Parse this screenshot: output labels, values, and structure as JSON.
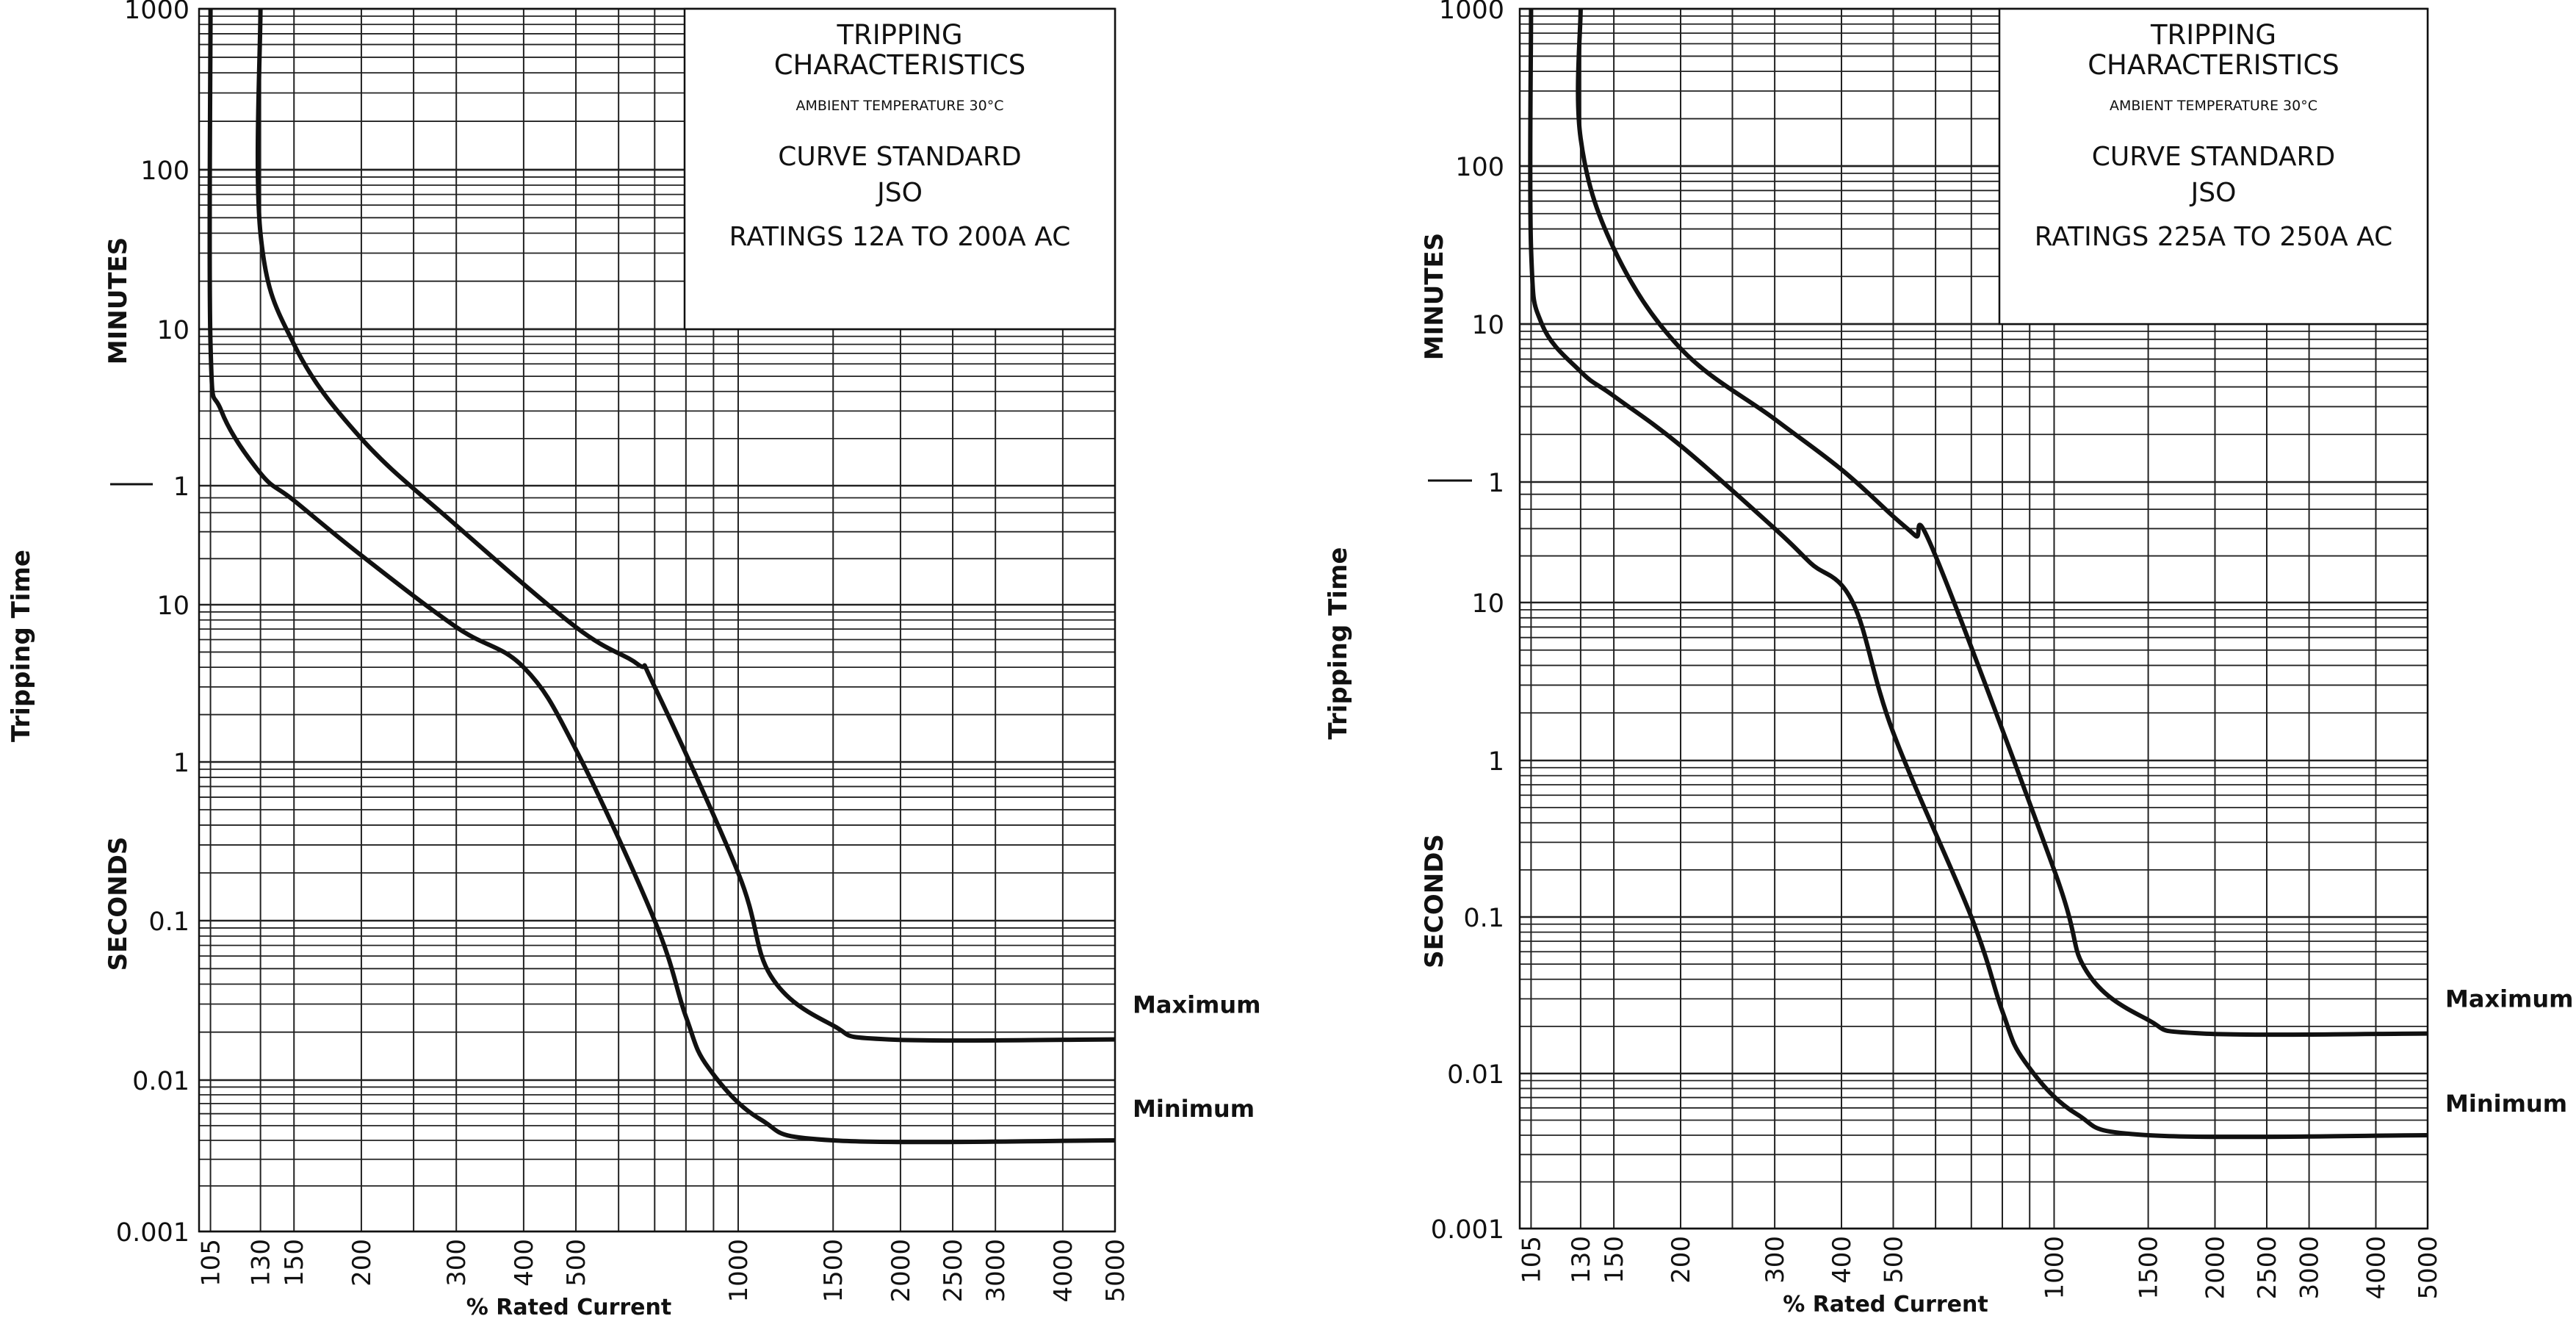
{
  "chart_data": [
    {
      "type": "line",
      "title": "TRIPPING CHARACTERISTICS",
      "subtitle": "AMBIENT TEMPERATURE 30°C",
      "standard_label": "CURVE STANDARD",
      "standard": "JSO",
      "ratings": "RATINGS 12A TO 200A AC",
      "xlabel": "% Rated Current",
      "ylabel": "Tripping Time",
      "unit_minutes": "MINUTES",
      "unit_seconds": "SECONDS",
      "x_scale": "log",
      "xlim": [
        100,
        5000
      ],
      "x_ticks": [
        "105",
        "130",
        "150",
        "200",
        "300",
        "400",
        "500",
        "1000",
        "1500",
        "2000",
        "2500",
        "3000",
        "4000",
        "5000"
      ],
      "y_minutes_ticks": [
        "1000",
        "100",
        "10",
        "1"
      ],
      "y_seconds_ticks": [
        "10",
        "1",
        "0.1",
        "0.01",
        "0.001"
      ],
      "series": [
        {
          "name": "Maximum",
          "points": [
            [
              130,
              1000
            ],
            [
              130,
              40
            ],
            [
              150,
              8
            ],
            [
              200,
              2
            ],
            [
              300,
              0.55
            ],
            [
              500,
              0.12
            ],
            [
              650,
              0.07
            ],
            [
              700,
              3
            ],
            [
              1000,
              0.2
            ],
            [
              1150,
              0.045
            ],
            [
              1500,
              0.022
            ],
            [
              1900,
              0.018
            ],
            [
              5000,
              0.018
            ]
          ]
        },
        {
          "name": "Minimum",
          "points": [
            [
              105,
              1000
            ],
            [
              105,
              8
            ],
            [
              110,
              3
            ],
            [
              130,
              1.2
            ],
            [
              150,
              0.8
            ],
            [
              200,
              0.35
            ],
            [
              300,
              0.12
            ],
            [
              400,
              4
            ],
            [
              500,
              1.2
            ],
            [
              700,
              0.1
            ],
            [
              800,
              0.025
            ],
            [
              880,
              0.012
            ],
            [
              1100,
              0.0055
            ],
            [
              1500,
              0.004
            ],
            [
              5000,
              0.004
            ]
          ]
        }
      ]
    },
    {
      "type": "line",
      "title": "TRIPPING CHARACTERISTICS",
      "subtitle": "AMBIENT TEMPERATURE 30°C",
      "standard_label": "CURVE STANDARD",
      "standard": "JSO",
      "ratings": "RATINGS 225A TO 250A AC",
      "xlabel": "% Rated Current",
      "ylabel": "Tripping Time",
      "unit_minutes": "MINUTES",
      "unit_seconds": "SECONDS",
      "x_scale": "log",
      "xlim": [
        100,
        5000
      ],
      "x_ticks": [
        "105",
        "130",
        "150",
        "200",
        "300",
        "400",
        "500",
        "1000",
        "1500",
        "2000",
        "2500",
        "3000",
        "4000",
        "5000"
      ],
      "y_minutes_ticks": [
        "1000",
        "100",
        "10",
        "1"
      ],
      "y_seconds_ticks": [
        "10",
        "1",
        "0.1",
        "0.01",
        "0.001"
      ],
      "series": [
        {
          "name": "Maximum",
          "points": [
            [
              130,
              1000
            ],
            [
              130,
              150
            ],
            [
              150,
              30
            ],
            [
              200,
              7
            ],
            [
              300,
              2.5
            ],
            [
              400,
              1.2
            ],
            [
              500,
              0.6
            ],
            [
              550,
              0.45
            ],
            [
              600,
              20
            ],
            [
              1000,
              0.2
            ],
            [
              1150,
              0.045
            ],
            [
              1500,
              0.022
            ],
            [
              1900,
              0.018
            ],
            [
              5000,
              0.018
            ]
          ]
        },
        {
          "name": "Minimum",
          "points": [
            [
              105,
              1000
            ],
            [
              105,
              30
            ],
            [
              110,
              10
            ],
            [
              130,
              5
            ],
            [
              150,
              3.5
            ],
            [
              200,
              1.7
            ],
            [
              300,
              0.5
            ],
            [
              350,
              0.3
            ],
            [
              420,
              10
            ],
            [
              500,
              1.5
            ],
            [
              700,
              0.1
            ],
            [
              800,
              0.025
            ],
            [
              880,
              0.012
            ],
            [
              1100,
              0.0055
            ],
            [
              1500,
              0.004
            ],
            [
              5000,
              0.004
            ]
          ]
        }
      ]
    }
  ]
}
